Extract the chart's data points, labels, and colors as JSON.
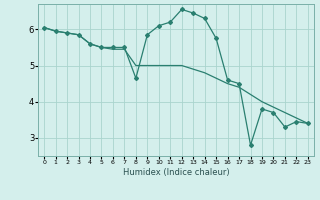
{
  "xlabel": "Humidex (Indice chaleur)",
  "background_color": "#d4efec",
  "grid_color": "#aad4ce",
  "line_color": "#2a7f70",
  "marker_color": "#2a7f70",
  "xlim": [
    -0.5,
    23.5
  ],
  "ylim": [
    2.5,
    6.7
  ],
  "yticks": [
    3,
    4,
    5,
    6
  ],
  "xticks": [
    0,
    1,
    2,
    3,
    4,
    5,
    6,
    7,
    8,
    9,
    10,
    11,
    12,
    13,
    14,
    15,
    16,
    17,
    18,
    19,
    20,
    21,
    22,
    23
  ],
  "line1_x": [
    0,
    1,
    2,
    3,
    4,
    5,
    6,
    7,
    8,
    9,
    10,
    11,
    12,
    13,
    14,
    15,
    16,
    17,
    18,
    19,
    20,
    21,
    22,
    23
  ],
  "line1_y": [
    6.05,
    5.95,
    5.9,
    5.85,
    5.6,
    5.5,
    5.5,
    5.5,
    4.65,
    5.85,
    6.1,
    6.2,
    6.55,
    6.45,
    6.3,
    5.75,
    4.6,
    4.5,
    2.8,
    3.8,
    3.7,
    3.3,
    3.45,
    3.4
  ],
  "line2_x": [
    0,
    1,
    2,
    3,
    4,
    5,
    6,
    7,
    8,
    9,
    10,
    11,
    12,
    13,
    14,
    15,
    16,
    17,
    18,
    19,
    20,
    21,
    22,
    23
  ],
  "line2_y": [
    6.05,
    5.95,
    5.9,
    5.85,
    5.6,
    5.5,
    5.45,
    5.45,
    5.0,
    5.0,
    5.0,
    5.0,
    5.0,
    4.9,
    4.8,
    4.65,
    4.5,
    4.4,
    4.2,
    4.0,
    3.85,
    3.7,
    3.55,
    3.4
  ]
}
